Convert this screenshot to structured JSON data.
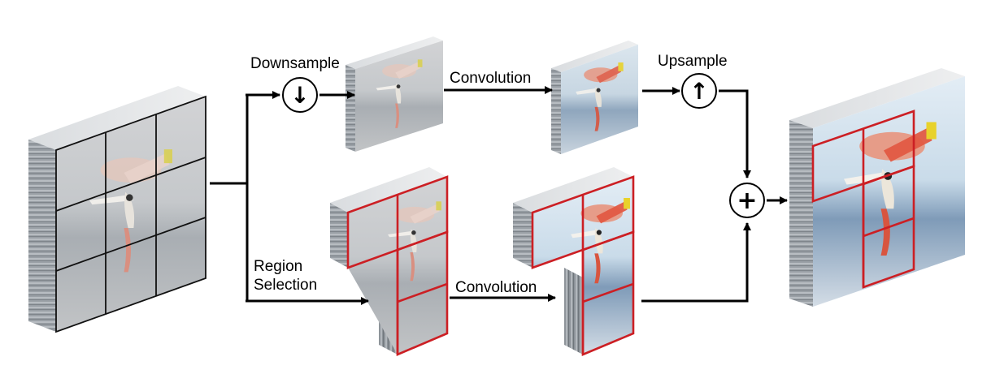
{
  "labels": {
    "downsample": "Downsample",
    "convolution_top": "Convolution",
    "upsample": "Upsample",
    "region_line1": "Region",
    "region_line2": "Selection",
    "convolution_bottom": "Convolution"
  },
  "operators": {
    "downsample_symbol": "↓",
    "upsample_symbol": "↑",
    "sum_symbol": "+"
  },
  "colors": {
    "region_outline": "#cc1f24",
    "grid_line": "#111111",
    "arrow": "#000000"
  }
}
